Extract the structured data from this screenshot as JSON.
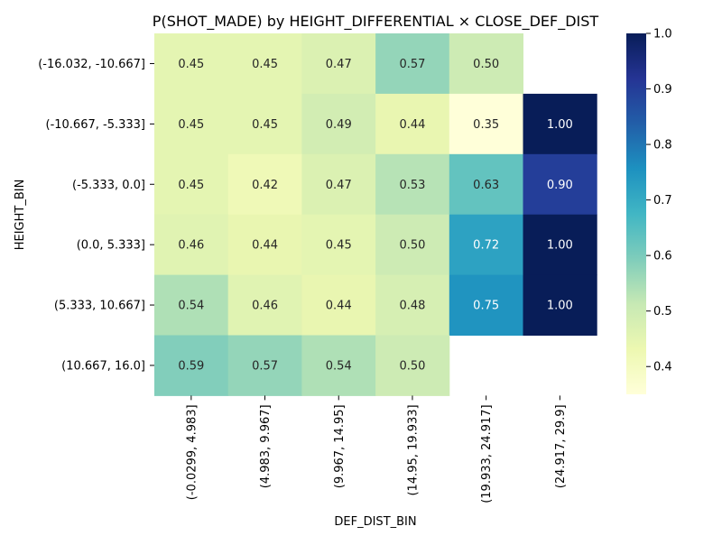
{
  "chart_data": {
    "type": "heatmap",
    "title": "P(SHOT_MADE) by HEIGHT_DIFFERENTIAL × CLOSE_DEF_DIST",
    "xlabel": "DEF_DIST_BIN",
    "ylabel": "HEIGHT_BIN",
    "x_categories": [
      "(-0.0299, 4.983]",
      "(4.983, 9.967]",
      "(9.967, 14.95]",
      "(14.95, 19.933]",
      "(19.933, 24.917]",
      "(24.917, 29.9]"
    ],
    "y_categories": [
      "(-16.032, -10.667]",
      "(-10.667, -5.333]",
      "(-5.333, 0.0]",
      "(0.0, 5.333]",
      "(5.333, 10.667]",
      "(10.667, 16.0]"
    ],
    "values": [
      [
        0.45,
        0.45,
        0.47,
        0.57,
        0.5,
        null
      ],
      [
        0.45,
        0.45,
        0.49,
        0.44,
        0.35,
        1.0
      ],
      [
        0.45,
        0.42,
        0.47,
        0.53,
        0.63,
        0.9
      ],
      [
        0.46,
        0.44,
        0.45,
        0.5,
        0.72,
        1.0
      ],
      [
        0.54,
        0.46,
        0.44,
        0.48,
        0.75,
        1.0
      ],
      [
        0.59,
        0.57,
        0.54,
        0.5,
        null,
        null
      ]
    ],
    "colorbar": {
      "min": 0.35,
      "max": 1.0,
      "ticks": [
        "0.4",
        "0.5",
        "0.6",
        "0.7",
        "0.8",
        "0.9",
        "1.0"
      ],
      "tick_values": [
        0.4,
        0.5,
        0.6,
        0.7,
        0.8,
        0.9,
        1.0
      ],
      "colormap": "YlGnBu"
    },
    "grid": false,
    "legend": "colorbar-right"
  }
}
